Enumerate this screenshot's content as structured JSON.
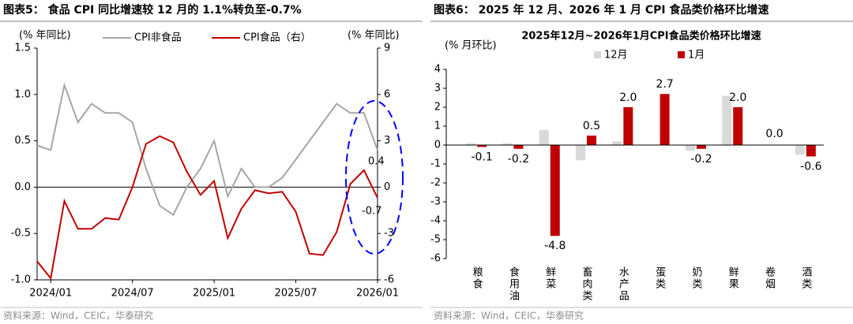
{
  "chart_data": [
    {
      "type": "line",
      "title": "图表5： 食品 CPI 同比增速较 12 月的 1.1%转负至-0.7%",
      "y_label": "(% 年同比)",
      "y2_label": "(% 年同比)",
      "source": "资料来源：Wind，CEIC，华泰研究",
      "categories": [
        null,
        "2024/01",
        null,
        null,
        null,
        null,
        null,
        "2024/07",
        null,
        null,
        null,
        null,
        null,
        "2025/01",
        null,
        null,
        null,
        null,
        null,
        "2025/07",
        null,
        null,
        null,
        null,
        null,
        "2026/01"
      ],
      "series": [
        {
          "name": "CPI非食品",
          "color": "#a6a6a6",
          "values": [
            0.45,
            0.4,
            1.1,
            0.7,
            0.9,
            0.8,
            0.8,
            0.7,
            0.2,
            -0.2,
            -0.3,
            0.0,
            0.2,
            0.5,
            -0.1,
            0.2,
            0.0,
            0.0,
            0.1,
            0.3,
            0.5,
            0.7,
            0.9,
            0.8,
            0.8,
            0.4
          ]
        },
        {
          "name": "CPI食品（右）",
          "color": "#c00000",
          "axis": "y2",
          "values": [
            -4.8,
            -5.9,
            -0.9,
            -2.7,
            -2.7,
            -2.0,
            -2.1,
            0.0,
            2.8,
            3.3,
            2.9,
            1.0,
            -0.5,
            0.4,
            -3.3,
            -1.4,
            -0.2,
            -0.4,
            -0.3,
            -1.6,
            -4.3,
            -4.4,
            -2.9,
            0.2,
            1.1,
            -0.7
          ]
        }
      ],
      "annotations": [
        "0.4",
        "-0.7"
      ],
      "ylim": [
        -1,
        1.5
      ],
      "yticks": [
        {
          "value": -1,
          "label": "-1.0"
        },
        -0.5,
        {
          "value": 0,
          "label": "0.0"
        },
        0.5,
        {
          "value": 1,
          "label": "1.0"
        },
        1.5
      ],
      "y2lim": [
        -6,
        9
      ],
      "y2ticks": [
        -6,
        -3,
        0,
        3,
        6,
        9
      ]
    },
    {
      "type": "bar",
      "title": "图表6： 2025 年 12 月、2026 年 1 月 CPI 食品类价格环比增速",
      "subtitle": "2025年12月~2026年1月CPI食品类价格环比增速",
      "y_label": "(% 月环比)",
      "source": "资料来源：Wind，CEIC，华泰研究",
      "categories": [
        "粮食",
        "食用油",
        "鲜菜",
        "畜肉类",
        "水产品",
        "蛋类",
        "奶类",
        "鲜果",
        "卷烟",
        "酒类"
      ],
      "series": [
        {
          "name": "12月",
          "color": "#d9d9d9",
          "values": [
            0.1,
            0.1,
            0.8,
            -0.8,
            0.2,
            0,
            -0.3,
            2.6,
            0,
            -0.5
          ]
        },
        {
          "name": "1月",
          "color": "#c00000",
          "values": [
            -0.1,
            -0.2,
            -4.8,
            0.5,
            2.0,
            2.7,
            -0.2,
            2.0,
            0.0,
            -0.6
          ],
          "value_labels": [
            "-0.1",
            "-0.2",
            "-4.8",
            "0.5",
            "2.0",
            "2.7",
            "-0.2",
            "2.0",
            "0.0",
            "-0.6"
          ]
        }
      ],
      "ylim": [
        -6,
        4
      ],
      "yticks": [
        -6,
        -5,
        -4,
        -3,
        -2,
        -1,
        0,
        1,
        2,
        3,
        4
      ]
    }
  ]
}
